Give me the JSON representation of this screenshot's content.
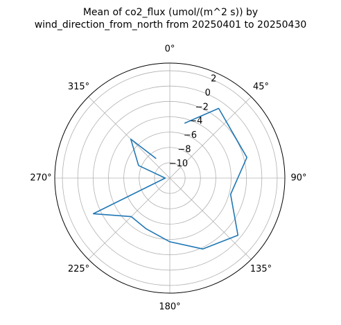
{
  "chart_data": {
    "type": "polar-line",
    "title_line1": "Mean of co2_flux (umol/(m^2 s)) by",
    "title_line2": "wind_direction_from_north from 20250401 to 20250430",
    "theta_zero": "N",
    "theta_direction": "clockwise",
    "angle_tick_labels": [
      "0°",
      "45°",
      "90°",
      "135°",
      "180°",
      "225°",
      "270°",
      "315°"
    ],
    "radial_tick_values": [
      -10,
      -8,
      -6,
      -4,
      -2,
      0,
      2
    ],
    "radial_tick_labels": [
      "−10",
      "−8",
      "−6",
      "−4",
      "−2",
      "0",
      "2"
    ],
    "rlim": [
      -12,
      3
    ],
    "grid": true,
    "line_color": "#1f77b4",
    "series": [
      {
        "theta_deg": [
          15,
          35,
          75,
          105,
          130,
          155,
          180,
          205,
          225,
          245,
          270,
          292,
          315,
          325
        ],
        "r": [
          -4.6,
          -0.9,
          -1.6,
          -3.8,
          -0.4,
          -1.8,
          -3.7,
          -4.7,
          -4.9,
          -1.0,
          -11.4,
          -7.6,
          -4.8,
          -8.9
        ]
      }
    ]
  }
}
